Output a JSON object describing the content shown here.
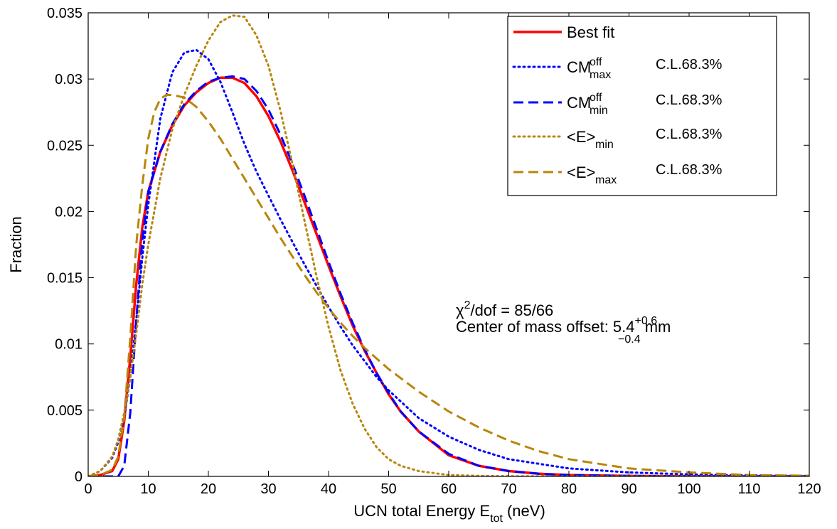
{
  "chart_data": {
    "type": "line",
    "xlabel": "UCN total Energy E",
    "xlabel_sub": "tot",
    "xlabel_unit": "(neV)",
    "ylabel": "Fraction",
    "xlim": [
      0,
      120
    ],
    "ylim": [
      0,
      0.035
    ],
    "xticks": [
      0,
      10,
      20,
      30,
      40,
      50,
      60,
      70,
      80,
      90,
      100,
      110,
      120
    ],
    "yticks": [
      0,
      0.005,
      0.01,
      0.015,
      0.02,
      0.025,
      0.03,
      0.035
    ],
    "xtick_labels": [
      "0",
      "10",
      "20",
      "30",
      "40",
      "50",
      "60",
      "70",
      "80",
      "90",
      "100",
      "110",
      "120"
    ],
    "ytick_labels": [
      "0",
      "0.005",
      "0.01",
      "0.015",
      "0.02",
      "0.025",
      "0.03",
      "0.035"
    ],
    "grid": false,
    "legend_position": "top-right",
    "legend": [
      {
        "main": "Best fit",
        "sup": "",
        "sub": "",
        "cl": ""
      },
      {
        "main": "CM",
        "sup": "off",
        "sub": "max",
        "cl": "C.L.68.3%"
      },
      {
        "main": "CM",
        "sup": "off",
        "sub": "min",
        "cl": "C.L.68.3%"
      },
      {
        "main": "<E>",
        "sup": "",
        "sub": "min",
        "cl": "C.L.68.3%"
      },
      {
        "main": "<E>",
        "sup": "",
        "sub": "max",
        "cl": "C.L.68.3%"
      }
    ],
    "annotation": {
      "line1_chi": "χ",
      "line1_sup": "2",
      "line1_rest": "/dof = 85/66",
      "line2_text": "Center of mass offset: 5.4",
      "line2_sup": "+0.6",
      "line2_sub": "−0.4",
      "line2_unit": " mm"
    },
    "series": [
      {
        "color": "#ff0000",
        "style": "solid",
        "x": [
          0,
          2,
          4,
          5,
          6,
          7,
          8,
          9,
          10,
          12,
          14,
          16,
          18,
          20,
          22,
          24,
          26,
          28,
          30,
          32,
          34,
          36,
          38,
          40,
          42,
          44,
          46,
          48,
          50,
          52,
          55,
          60,
          65,
          70,
          75,
          80,
          90,
          100,
          110,
          120
        ],
        "y": [
          0,
          0.0001,
          0.0004,
          0.0013,
          0.0042,
          0.009,
          0.0145,
          0.0188,
          0.0215,
          0.0245,
          0.0265,
          0.028,
          0.029,
          0.0297,
          0.0301,
          0.0301,
          0.0297,
          0.0287,
          0.0272,
          0.0253,
          0.0231,
          0.0207,
          0.0183,
          0.0159,
          0.0136,
          0.0114,
          0.0095,
          0.0078,
          0.0062,
          0.0049,
          0.0034,
          0.0016,
          0.0008,
          0.0004,
          0.0002,
          0.0001,
          3e-05,
          1e-05,
          0,
          0
        ]
      },
      {
        "color": "#0000ff",
        "style": "dotted",
        "x": [
          0,
          2,
          4,
          5,
          6,
          7,
          8,
          9,
          10,
          12,
          14,
          16,
          18,
          20,
          22,
          24,
          26,
          28,
          30,
          32,
          34,
          36,
          38,
          40,
          42,
          44,
          46,
          48,
          50,
          55,
          60,
          65,
          70,
          80,
          90,
          100,
          110,
          120
        ],
        "y": [
          0,
          0.0004,
          0.0014,
          0.0026,
          0.0045,
          0.0075,
          0.0118,
          0.0165,
          0.0205,
          0.027,
          0.0305,
          0.032,
          0.0322,
          0.0315,
          0.0298,
          0.0275,
          0.0251,
          0.023,
          0.0212,
          0.0194,
          0.0177,
          0.016,
          0.0144,
          0.0128,
          0.0113,
          0.0099,
          0.0087,
          0.0075,
          0.0065,
          0.0044,
          0.003,
          0.002,
          0.0013,
          0.0006,
          0.0003,
          0.00015,
          7e-05,
          4e-05
        ]
      },
      {
        "color": "#0000ff",
        "style": "dashed",
        "x": [
          0,
          5,
          6,
          7,
          8,
          9,
          10,
          12,
          14,
          16,
          18,
          20,
          22,
          24,
          26,
          28,
          30,
          32,
          34,
          36,
          38,
          40,
          42,
          44,
          46,
          48,
          50,
          52,
          55,
          60,
          65,
          70,
          75,
          80,
          90,
          100,
          110,
          120
        ],
        "y": [
          0,
          0,
          0.0008,
          0.0048,
          0.0118,
          0.0178,
          0.0215,
          0.0245,
          0.0266,
          0.0281,
          0.0291,
          0.0298,
          0.0301,
          0.0302,
          0.03,
          0.0291,
          0.0277,
          0.0258,
          0.0236,
          0.0212,
          0.0187,
          0.0162,
          0.0138,
          0.0116,
          0.0096,
          0.0078,
          0.0063,
          0.0049,
          0.0034,
          0.0017,
          0.0008,
          0.0004,
          0.0002,
          0.0001,
          3e-05,
          1e-05,
          0,
          0
        ]
      },
      {
        "color": "#b8860b",
        "style": "dotted",
        "x": [
          0,
          2,
          4,
          5,
          6,
          7,
          8,
          9,
          10,
          12,
          14,
          16,
          18,
          20,
          22,
          24,
          26,
          28,
          30,
          32,
          34,
          36,
          38,
          40,
          42,
          44,
          46,
          48,
          50,
          52,
          55,
          60,
          65,
          70,
          80,
          90,
          100,
          110,
          120
        ],
        "y": [
          0,
          0.0004,
          0.0015,
          0.0028,
          0.0048,
          0.0075,
          0.0108,
          0.0145,
          0.0175,
          0.0225,
          0.0262,
          0.0288,
          0.031,
          0.0329,
          0.0343,
          0.0348,
          0.0347,
          0.0333,
          0.031,
          0.0276,
          0.0236,
          0.0193,
          0.0151,
          0.0113,
          0.008,
          0.0055,
          0.0036,
          0.0022,
          0.0013,
          0.0008,
          0.0004,
          0.0001,
          4e-05,
          1e-05,
          0,
          0,
          0,
          0,
          0
        ]
      },
      {
        "color": "#b8860b",
        "style": "dashed",
        "x": [
          0,
          2,
          4,
          5,
          6,
          7,
          8,
          9,
          10,
          11,
          12,
          13,
          14,
          16,
          18,
          20,
          22,
          24,
          26,
          28,
          30,
          32,
          34,
          36,
          38,
          40,
          42,
          44,
          46,
          48,
          50,
          55,
          60,
          65,
          70,
          75,
          80,
          90,
          100,
          110,
          120
        ],
        "y": [
          0,
          0.0001,
          0.0005,
          0.0015,
          0.0045,
          0.0105,
          0.0175,
          0.022,
          0.0255,
          0.0275,
          0.0285,
          0.0288,
          0.0288,
          0.0286,
          0.0279,
          0.0268,
          0.0255,
          0.024,
          0.0225,
          0.021,
          0.0195,
          0.018,
          0.0166,
          0.0152,
          0.0139,
          0.0127,
          0.0116,
          0.0106,
          0.0097,
          0.0089,
          0.0081,
          0.0064,
          0.0049,
          0.0037,
          0.0027,
          0.0019,
          0.0013,
          0.0006,
          0.0003,
          0.0001,
          5e-05
        ]
      }
    ]
  }
}
